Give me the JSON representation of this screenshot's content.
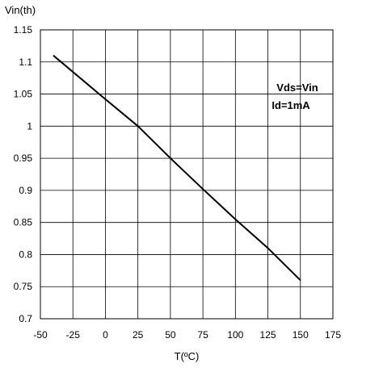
{
  "chart_data": {
    "type": "line",
    "title": "",
    "xlabel": "T(ºC)",
    "ylabel": "Vin(th)",
    "xlim": [
      -50,
      175
    ],
    "ylim": [
      0.7,
      1.15
    ],
    "xticks": [
      "-50",
      "-25",
      "0",
      "25",
      "50",
      "75",
      "100",
      "125",
      "150",
      "175"
    ],
    "yticks": [
      "0.7",
      "0.75",
      "0.8",
      "0.85",
      "0.9",
      "0.95",
      "1",
      "1.05",
      "1.1",
      "1.15"
    ],
    "grid": true,
    "annotations": [
      "Vds=Vin",
      "Id=1mA"
    ],
    "series": [
      {
        "x": [
          -40,
          0,
          25,
          50,
          75,
          100,
          125,
          150
        ],
        "y": [
          1.11,
          1.042,
          1.0,
          0.95,
          0.902,
          0.855,
          0.81,
          0.76
        ]
      }
    ]
  }
}
